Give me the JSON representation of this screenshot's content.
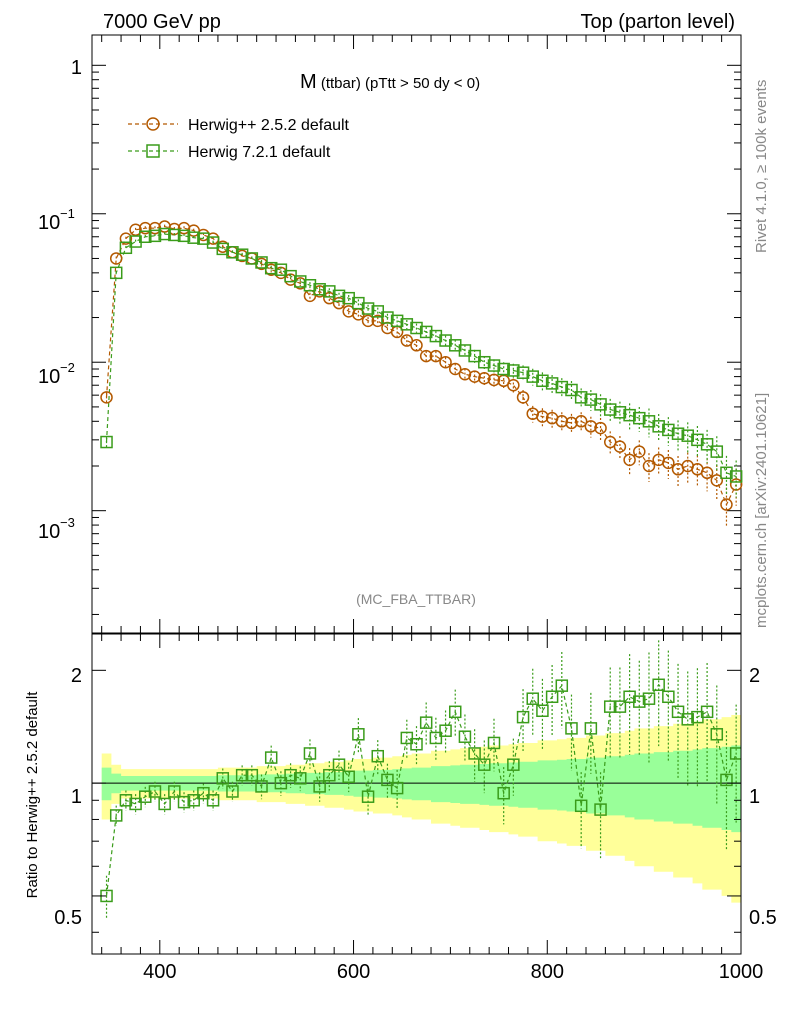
{
  "header": {
    "left": "7000 GeV pp",
    "right": "Top (parton level)"
  },
  "side_labels": {
    "rivet": "Rivet 4.1.0, ≥ 100k events",
    "mcplots": "mcplots.cern.ch [arXiv:2401.10621]"
  },
  "main_plot": {
    "title_main": "M",
    "title_sub": " (ttbar) (pTtt > 50 dy < 0)",
    "analysis": "(MC_FBA_TTBAR)",
    "ytick_1": "1",
    "ytick_10m1_base": "10",
    "ytick_10m1_exp": "−1",
    "ytick_10m2_base": "10",
    "ytick_10m2_exp": "−2",
    "ytick_10m3_base": "10",
    "ytick_10m3_exp": "−3"
  },
  "ratio_plot": {
    "ylabel": "Ratio to Herwig++ 2.5.2 default",
    "yticks": [
      "2",
      "1",
      "0.5"
    ]
  },
  "legend": {
    "entries": [
      "Herwig++ 2.5.2 default",
      "Herwig 7.2.1 default"
    ]
  },
  "colors": {
    "herwig_pp": "#b35900",
    "herwig7": "#3a9c1a",
    "band_inner": "#99ff99",
    "band_outer": "#ffff99"
  },
  "chart_data": {
    "type": "scatter",
    "xlabel": "",
    "xlim": [
      330,
      1000
    ],
    "x_ticks": [
      400,
      600,
      800,
      1000
    ],
    "main": {
      "yscale": "log",
      "ylim": [
        0.00015,
        1.6
      ],
      "ylabel": "",
      "x": [
        345,
        355,
        365,
        375,
        385,
        395,
        405,
        415,
        425,
        435,
        445,
        455,
        465,
        475,
        485,
        495,
        505,
        515,
        525,
        535,
        545,
        555,
        565,
        575,
        585,
        595,
        605,
        615,
        625,
        635,
        645,
        655,
        665,
        675,
        685,
        695,
        705,
        715,
        725,
        735,
        745,
        755,
        765,
        775,
        785,
        795,
        805,
        815,
        825,
        835,
        845,
        855,
        865,
        875,
        885,
        895,
        905,
        915,
        925,
        935,
        945,
        955,
        965,
        975,
        985,
        995
      ],
      "series": [
        {
          "name": "Herwig++ 2.5.2 default",
          "values": [
            0.0058,
            0.05,
            0.068,
            0.078,
            0.08,
            0.08,
            0.082,
            0.079,
            0.08,
            0.077,
            0.072,
            0.068,
            0.06,
            0.055,
            0.052,
            0.05,
            0.046,
            0.042,
            0.04,
            0.036,
            0.034,
            0.028,
            0.03,
            0.027,
            0.025,
            0.022,
            0.021,
            0.019,
            0.019,
            0.017,
            0.016,
            0.014,
            0.013,
            0.011,
            0.011,
            0.01,
            0.009,
            0.0083,
            0.008,
            0.0078,
            0.0076,
            0.0075,
            0.007,
            0.0058,
            0.0045,
            0.0043,
            0.0042,
            0.004,
            0.0039,
            0.004,
            0.0037,
            0.0036,
            0.0029,
            0.0027,
            0.0022,
            0.0025,
            0.002,
            0.0022,
            0.0021,
            0.0019,
            0.002,
            0.0019,
            0.0018,
            0.0016,
            0.0011,
            0.0015
          ],
          "yerr_rel": [
            0.08,
            0.03,
            0.03,
            0.03,
            0.03,
            0.03,
            0.03,
            0.03,
            0.03,
            0.03,
            0.03,
            0.03,
            0.03,
            0.03,
            0.03,
            0.03,
            0.04,
            0.04,
            0.04,
            0.04,
            0.04,
            0.05,
            0.05,
            0.05,
            0.05,
            0.05,
            0.06,
            0.06,
            0.06,
            0.06,
            0.07,
            0.07,
            0.07,
            0.08,
            0.08,
            0.08,
            0.09,
            0.09,
            0.1,
            0.1,
            0.1,
            0.11,
            0.11,
            0.12,
            0.13,
            0.14,
            0.14,
            0.15,
            0.15,
            0.15,
            0.16,
            0.17,
            0.18,
            0.18,
            0.2,
            0.19,
            0.22,
            0.21,
            0.22,
            0.23,
            0.23,
            0.24,
            0.25,
            0.27,
            0.3,
            0.28
          ]
        },
        {
          "name": "Herwig 7.2.1 default",
          "values": [
            0.0029,
            0.04,
            0.059,
            0.065,
            0.07,
            0.071,
            0.073,
            0.072,
            0.071,
            0.069,
            0.068,
            0.064,
            0.058,
            0.055,
            0.053,
            0.05,
            0.047,
            0.043,
            0.042,
            0.038,
            0.035,
            0.033,
            0.031,
            0.03,
            0.028,
            0.027,
            0.025,
            0.023,
            0.022,
            0.02,
            0.019,
            0.018,
            0.017,
            0.016,
            0.015,
            0.014,
            0.013,
            0.012,
            0.011,
            0.01,
            0.0095,
            0.009,
            0.0088,
            0.0085,
            0.008,
            0.0075,
            0.0072,
            0.0068,
            0.0065,
            0.0058,
            0.0056,
            0.0052,
            0.0048,
            0.0046,
            0.0044,
            0.0042,
            0.004,
            0.0037,
            0.0035,
            0.0033,
            0.0032,
            0.003,
            0.0028,
            0.0025,
            0.0018,
            0.0017
          ]
        }
      ]
    },
    "ratio": {
      "yscale": "log",
      "ylim": [
        0.35,
        2.5
      ],
      "ylabel": "Ratio to Herwig++ 2.5.2 default",
      "x": [
        345,
        355,
        365,
        375,
        385,
        395,
        405,
        415,
        425,
        435,
        445,
        455,
        465,
        475,
        485,
        495,
        505,
        515,
        525,
        535,
        545,
        555,
        565,
        575,
        585,
        595,
        605,
        615,
        625,
        635,
        645,
        655,
        665,
        675,
        685,
        695,
        705,
        715,
        725,
        735,
        745,
        755,
        765,
        775,
        785,
        795,
        805,
        815,
        825,
        835,
        845,
        855,
        865,
        875,
        885,
        895,
        905,
        915,
        925,
        935,
        945,
        955,
        965,
        975,
        985,
        995
      ],
      "values": [
        0.5,
        0.82,
        0.9,
        0.88,
        0.92,
        0.95,
        0.88,
        0.95,
        0.89,
        0.9,
        0.94,
        0.9,
        1.03,
        0.95,
        1.05,
        1.05,
        0.98,
        1.17,
        1.0,
        1.05,
        1.03,
        1.2,
        0.98,
        1.05,
        1.12,
        1.04,
        1.35,
        0.92,
        1.18,
        1.02,
        0.97,
        1.32,
        1.27,
        1.45,
        1.32,
        1.38,
        1.55,
        1.33,
        1.2,
        1.12,
        1.28,
        0.94,
        1.12,
        1.5,
        1.68,
        1.56,
        1.7,
        1.82,
        1.4,
        0.87,
        1.4,
        0.85,
        1.6,
        1.6,
        1.7,
        1.65,
        1.68,
        1.83,
        1.7,
        1.55,
        1.48,
        1.5,
        1.55,
        1.35,
        1.02,
        1.2
      ],
      "band_x": [
        340,
        350,
        360,
        370,
        380,
        390,
        400,
        410,
        420,
        430,
        440,
        450,
        460,
        470,
        480,
        490,
        500,
        510,
        520,
        530,
        540,
        550,
        560,
        570,
        580,
        590,
        600,
        610,
        620,
        630,
        640,
        650,
        660,
        670,
        680,
        690,
        700,
        710,
        720,
        730,
        740,
        750,
        760,
        770,
        780,
        790,
        800,
        810,
        820,
        830,
        840,
        850,
        860,
        870,
        880,
        890,
        900,
        910,
        920,
        930,
        940,
        950,
        960,
        970,
        980,
        990,
        1000
      ],
      "band_inner": [
        0.1,
        0.06,
        0.045,
        0.045,
        0.045,
        0.045,
        0.045,
        0.045,
        0.045,
        0.045,
        0.045,
        0.045,
        0.05,
        0.05,
        0.05,
        0.05,
        0.055,
        0.055,
        0.055,
        0.06,
        0.06,
        0.065,
        0.065,
        0.07,
        0.07,
        0.075,
        0.08,
        0.08,
        0.085,
        0.085,
        0.09,
        0.095,
        0.1,
        0.1,
        0.11,
        0.11,
        0.115,
        0.12,
        0.12,
        0.125,
        0.13,
        0.13,
        0.135,
        0.14,
        0.14,
        0.15,
        0.15,
        0.155,
        0.16,
        0.16,
        0.17,
        0.17,
        0.18,
        0.18,
        0.19,
        0.2,
        0.2,
        0.21,
        0.21,
        0.22,
        0.22,
        0.23,
        0.24,
        0.24,
        0.25,
        0.26,
        0.27
      ],
      "band_outer": [
        0.2,
        0.12,
        0.09,
        0.09,
        0.09,
        0.09,
        0.09,
        0.09,
        0.09,
        0.09,
        0.09,
        0.09,
        0.1,
        0.1,
        0.1,
        0.1,
        0.11,
        0.11,
        0.11,
        0.12,
        0.12,
        0.13,
        0.13,
        0.14,
        0.14,
        0.15,
        0.16,
        0.16,
        0.17,
        0.17,
        0.18,
        0.19,
        0.2,
        0.2,
        0.22,
        0.22,
        0.23,
        0.24,
        0.24,
        0.25,
        0.26,
        0.26,
        0.27,
        0.28,
        0.28,
        0.3,
        0.3,
        0.31,
        0.32,
        0.32,
        0.34,
        0.34,
        0.36,
        0.36,
        0.38,
        0.4,
        0.4,
        0.42,
        0.42,
        0.44,
        0.44,
        0.46,
        0.48,
        0.48,
        0.5,
        0.52,
        0.54
      ]
    }
  }
}
